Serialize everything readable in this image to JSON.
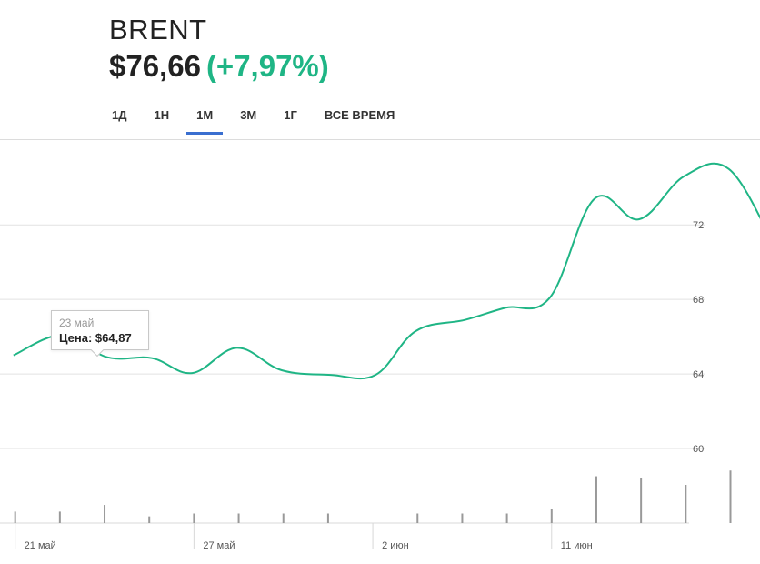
{
  "header": {
    "ticker": "BRENT",
    "price": "$76,66",
    "change": "(+7,97%)"
  },
  "tabs": [
    {
      "label": "1Д",
      "active": false
    },
    {
      "label": "1Н",
      "active": false
    },
    {
      "label": "1М",
      "active": true
    },
    {
      "label": "3М",
      "active": false
    },
    {
      "label": "1Г",
      "active": false
    },
    {
      "label": "ВСЕ ВРЕМЯ",
      "active": false
    }
  ],
  "tooltip": {
    "date": "23 май",
    "price_label": "Цена:",
    "price_value": "$64,87"
  },
  "colors": {
    "line": "#1fb585",
    "grid": "#e2e2e2",
    "volume": "#999999",
    "accent": "#3a6fd0"
  },
  "chart_data": {
    "type": "line",
    "ylim": [
      56,
      76.5
    ],
    "y_ticks": [
      {
        "value": 72,
        "label": "72"
      },
      {
        "value": 68,
        "label": "68"
      },
      {
        "value": 64,
        "label": "64"
      },
      {
        "value": 60,
        "label": "60"
      }
    ],
    "x_day_range": [
      20.6,
      37.6
    ],
    "x_ticks": [
      {
        "day": 21,
        "label": "21 май"
      },
      {
        "day": 25,
        "label": "27 май"
      },
      {
        "day": 29,
        "label": "2 июн"
      },
      {
        "day": 33,
        "label": "11 июн"
      }
    ],
    "series": [
      {
        "points": [
          {
            "day": 20.9,
            "value": 65.0
          },
          {
            "day": 22.0,
            "value": 66.1
          },
          {
            "day": 23.0,
            "value": 64.9
          },
          {
            "day": 24.0,
            "value": 64.85
          },
          {
            "day": 24.9,
            "value": 64.05
          },
          {
            "day": 25.9,
            "value": 65.4
          },
          {
            "day": 26.9,
            "value": 64.2
          },
          {
            "day": 28.0,
            "value": 63.95
          },
          {
            "day": 29.0,
            "value": 63.95
          },
          {
            "day": 29.9,
            "value": 66.3
          },
          {
            "day": 31.0,
            "value": 66.9
          },
          {
            "day": 31.9,
            "value": 67.55
          },
          {
            "day": 32.9,
            "value": 68.1
          },
          {
            "day": 33.9,
            "value": 73.4
          },
          {
            "day": 34.9,
            "value": 72.3
          },
          {
            "day": 35.9,
            "value": 74.6
          },
          {
            "day": 36.9,
            "value": 75.0
          },
          {
            "day": 37.9,
            "value": 71.0
          }
        ]
      }
    ],
    "volume": [
      {
        "day": 21,
        "value": 0.12
      },
      {
        "day": 22,
        "value": 0.12
      },
      {
        "day": 23,
        "value": 0.19
      },
      {
        "day": 24,
        "value": 0.07
      },
      {
        "day": 25,
        "value": 0.1
      },
      {
        "day": 26,
        "value": 0.1
      },
      {
        "day": 27,
        "value": 0.1
      },
      {
        "day": 28,
        "value": 0.1
      },
      {
        "day": 30,
        "value": 0.1
      },
      {
        "day": 31,
        "value": 0.1
      },
      {
        "day": 32,
        "value": 0.1
      },
      {
        "day": 33,
        "value": 0.15
      },
      {
        "day": 34,
        "value": 0.49
      },
      {
        "day": 35,
        "value": 0.47
      },
      {
        "day": 36,
        "value": 0.4
      },
      {
        "day": 37,
        "value": 0.55
      },
      {
        "day": 38,
        "value": 0.41
      }
    ]
  }
}
